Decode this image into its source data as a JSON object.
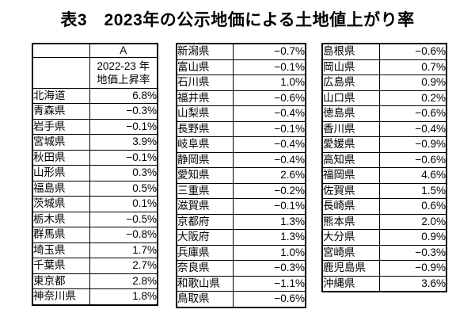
{
  "title": "表3　2023年の公示地価による土地値上がり率",
  "table1": {
    "col_header": "A",
    "sub_header_line1": "2022-23 年",
    "sub_header_line2": "地価上昇率",
    "rows": [
      {
        "name": "北海道",
        "value": "6.8%"
      },
      {
        "name": "青森県",
        "value": "−0.3%"
      },
      {
        "name": "岩手県",
        "value": "−0.1%"
      },
      {
        "name": "宮城県",
        "value": "3.9%"
      },
      {
        "name": "秋田県",
        "value": "−0.1%"
      },
      {
        "name": "山形県",
        "value": "0.3%"
      },
      {
        "name": "福島県",
        "value": "0.5%"
      },
      {
        "name": "茨城県",
        "value": "0.1%"
      },
      {
        "name": "栃木県",
        "value": "−0.5%"
      },
      {
        "name": "群馬県",
        "value": "−0.8%"
      },
      {
        "name": "埼玉県",
        "value": "1.7%"
      },
      {
        "name": "千葉県",
        "value": "2.7%"
      },
      {
        "name": "東京都",
        "value": "2.8%"
      },
      {
        "name": "神奈川県",
        "value": "1.8%"
      }
    ]
  },
  "table2": {
    "rows": [
      {
        "name": "新潟県",
        "value": "−0.7%"
      },
      {
        "name": "富山県",
        "value": "−0.1%"
      },
      {
        "name": "石川県",
        "value": "1.0%"
      },
      {
        "name": "福井県",
        "value": "−0.6%"
      },
      {
        "name": "山梨県",
        "value": "−0.4%"
      },
      {
        "name": "長野県",
        "value": "−0.1%"
      },
      {
        "name": "岐阜県",
        "value": "−0.4%"
      },
      {
        "name": "静岡県",
        "value": "−0.4%"
      },
      {
        "name": "愛知県",
        "value": "2.6%"
      },
      {
        "name": "三重県",
        "value": "−0.2%"
      },
      {
        "name": "滋賀県",
        "value": "−0.1%"
      },
      {
        "name": "京都府",
        "value": "1.3%"
      },
      {
        "name": "大阪府",
        "value": "1.3%"
      },
      {
        "name": "兵庫県",
        "value": "1.0%"
      },
      {
        "name": "奈良県",
        "value": "−0.3%"
      },
      {
        "name": "和歌山県",
        "value": "−1.1%"
      },
      {
        "name": "鳥取県",
        "value": "−0.6%"
      }
    ]
  },
  "table3": {
    "rows": [
      {
        "name": "島根県",
        "value": "−0.6%"
      },
      {
        "name": "岡山県",
        "value": "0.7%"
      },
      {
        "name": "広島県",
        "value": "0.9%"
      },
      {
        "name": "山口県",
        "value": "0.2%"
      },
      {
        "name": "徳島県",
        "value": "−0.6%"
      },
      {
        "name": "香川県",
        "value": "−0.4%"
      },
      {
        "name": "愛媛県",
        "value": "−0.9%"
      },
      {
        "name": "高知県",
        "value": "−0.6%"
      },
      {
        "name": "福岡県",
        "value": "4.6%"
      },
      {
        "name": "佐賀県",
        "value": "1.5%"
      },
      {
        "name": "長崎県",
        "value": "0.6%"
      },
      {
        "name": "熊本県",
        "value": "2.0%"
      },
      {
        "name": "大分県",
        "value": "0.9%"
      },
      {
        "name": "宮崎県",
        "value": "−0.3%"
      },
      {
        "name": "鹿児島県",
        "value": "−0.9%"
      },
      {
        "name": "沖縄県",
        "value": "3.6%"
      }
    ]
  }
}
